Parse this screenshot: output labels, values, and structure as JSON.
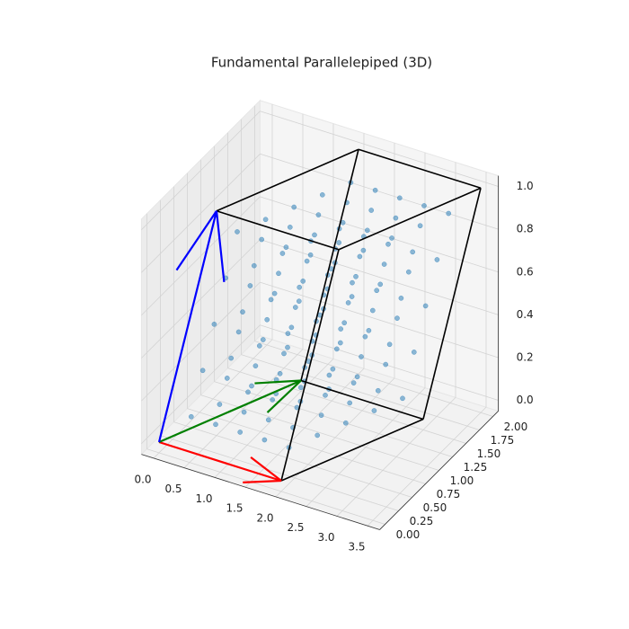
{
  "chart_data": {
    "type": "scatter3d",
    "title": "Fundamental Parallelepiped (3D)",
    "color": "#1f77b4",
    "edge_color": "black",
    "grid": true,
    "xlim": [
      -0.2,
      3.7
    ],
    "ylim": [
      -0.1,
      2.1
    ],
    "zlim": [
      -0.05,
      1.05
    ],
    "xticks": [
      {
        "value": 0,
        "label": "0.0"
      },
      {
        "value": 0.5,
        "label": "0.5"
      },
      {
        "value": 1,
        "label": "1.0"
      },
      {
        "value": 1.5,
        "label": "1.5"
      },
      {
        "value": 2,
        "label": "2.0"
      },
      {
        "value": 2.5,
        "label": "2.5"
      },
      {
        "value": 3,
        "label": "3.0"
      },
      {
        "value": 3.5,
        "label": "3.5"
      }
    ],
    "yticks": [
      {
        "value": 0,
        "label": "0.00"
      },
      {
        "value": 0.25,
        "label": "0.25"
      },
      {
        "value": 0.5,
        "label": "0.50"
      },
      {
        "value": 0.75,
        "label": "0.75"
      },
      {
        "value": 1,
        "label": "1.00"
      },
      {
        "value": 1.25,
        "label": "1.25"
      },
      {
        "value": 1.5,
        "label": "1.50"
      },
      {
        "value": 1.75,
        "label": "1.75"
      },
      {
        "value": 2,
        "label": "2.00"
      }
    ],
    "zticks": [
      {
        "value": 0,
        "label": "0.0"
      },
      {
        "value": 0.2,
        "label": "0.2"
      },
      {
        "value": 0.4,
        "label": "0.4"
      },
      {
        "value": 0.6,
        "label": "0.6"
      },
      {
        "value": 0.8,
        "label": "0.8"
      },
      {
        "value": 1,
        "label": "1.0"
      }
    ],
    "vectors": [
      {
        "color": "red",
        "values": [
          2,
          0,
          0
        ]
      },
      {
        "color": "green",
        "values": [
          1,
          1.5,
          0
        ]
      },
      {
        "color": "blue",
        "values": [
          0.5,
          0.5,
          1
        ]
      }
    ],
    "x": [
      0.35,
      0.75,
      1.15,
      1.55,
      1.95,
      0.55,
      0.95,
      1.35,
      1.75,
      2.15,
      0.75,
      1.15,
      1.55,
      1.95,
      2.35,
      0.95,
      1.35,
      1.75,
      2.15,
      2.55,
      1.15,
      1.55,
      1.95,
      2.35,
      2.75,
      0.45,
      0.85,
      1.25,
      1.65,
      2.05,
      0.65,
      1.05,
      1.45,
      1.85,
      2.25,
      0.85,
      1.25,
      1.65,
      2.05,
      2.45,
      1.05,
      1.45,
      1.85,
      2.25,
      2.65,
      1.25,
      1.65,
      2.05,
      2.45,
      2.85,
      0.55,
      0.95,
      1.35,
      1.75,
      2.15,
      0.75,
      1.15,
      1.55,
      1.95,
      2.35,
      0.95,
      1.35,
      1.75,
      2.15,
      2.55,
      1.15,
      1.55,
      1.95,
      2.35,
      2.75,
      1.35,
      1.75,
      2.15,
      2.55,
      2.95,
      0.65,
      1.05,
      1.45,
      1.85,
      2.25,
      0.85,
      1.25,
      1.65,
      2.05,
      2.45,
      1.05,
      1.45,
      1.85,
      2.25,
      2.65,
      1.25,
      1.65,
      2.05,
      2.45,
      2.85,
      1.45,
      1.85,
      2.25,
      2.65,
      3.05,
      0.75,
      1.15,
      1.55,
      1.95,
      2.35,
      0.95,
      1.35,
      1.75,
      2.15,
      2.55,
      1.15,
      1.55,
      1.95,
      2.35,
      2.75,
      1.35,
      1.75,
      2.15,
      2.55,
      2.95,
      1.55,
      1.95,
      2.35,
      2.75,
      3.15
    ],
    "y": [
      0.2,
      0.2,
      0.2,
      0.2,
      0.2,
      0.5,
      0.5,
      0.5,
      0.5,
      0.5,
      0.8,
      0.8,
      0.8,
      0.8,
      0.8,
      1.1,
      1.1,
      1.1,
      1.1,
      1.1,
      1.4,
      1.4,
      1.4,
      1.4,
      1.4,
      0.3,
      0.3,
      0.3,
      0.3,
      0.3,
      0.6,
      0.6,
      0.6,
      0.6,
      0.6,
      0.9,
      0.9,
      0.9,
      0.9,
      0.9,
      1.2,
      1.2,
      1.2,
      1.2,
      1.2,
      1.5,
      1.5,
      1.5,
      1.5,
      1.5,
      0.4,
      0.4,
      0.4,
      0.4,
      0.4,
      0.7,
      0.7,
      0.7,
      0.7,
      0.7,
      1.0,
      1.0,
      1.0,
      1.0,
      1.0,
      1.3,
      1.3,
      1.3,
      1.3,
      1.3,
      1.6,
      1.6,
      1.6,
      1.6,
      1.6,
      0.5,
      0.5,
      0.5,
      0.5,
      0.5,
      0.8,
      0.8,
      0.8,
      0.8,
      0.8,
      1.1,
      1.1,
      1.1,
      1.1,
      1.1,
      1.4,
      1.4,
      1.4,
      1.4,
      1.4,
      1.7,
      1.7,
      1.7,
      1.7,
      1.7,
      0.6,
      0.6,
      0.6,
      0.6,
      0.6,
      0.9,
      0.9,
      0.9,
      0.9,
      0.9,
      1.2,
      1.2,
      1.2,
      1.2,
      1.2,
      1.5,
      1.5,
      1.5,
      1.5,
      1.5,
      1.8,
      1.8,
      1.8,
      1.8,
      1.8
    ],
    "z": [
      0.1,
      0.1,
      0.1,
      0.1,
      0.1,
      0.1,
      0.1,
      0.1,
      0.1,
      0.1,
      0.1,
      0.1,
      0.1,
      0.1,
      0.1,
      0.1,
      0.1,
      0.1,
      0.1,
      0.1,
      0.1,
      0.1,
      0.1,
      0.1,
      0.1,
      0.3,
      0.3,
      0.3,
      0.3,
      0.3,
      0.3,
      0.3,
      0.3,
      0.3,
      0.3,
      0.3,
      0.3,
      0.3,
      0.3,
      0.3,
      0.3,
      0.3,
      0.3,
      0.3,
      0.3,
      0.3,
      0.3,
      0.3,
      0.3,
      0.3,
      0.5,
      0.5,
      0.5,
      0.5,
      0.5,
      0.5,
      0.5,
      0.5,
      0.5,
      0.5,
      0.5,
      0.5,
      0.5,
      0.5,
      0.5,
      0.5,
      0.5,
      0.5,
      0.5,
      0.5,
      0.5,
      0.5,
      0.5,
      0.5,
      0.5,
      0.7,
      0.7,
      0.7,
      0.7,
      0.7,
      0.7,
      0.7,
      0.7,
      0.7,
      0.7,
      0.7,
      0.7,
      0.7,
      0.7,
      0.7,
      0.7,
      0.7,
      0.7,
      0.7,
      0.7,
      0.7,
      0.7,
      0.7,
      0.7,
      0.7,
      0.9,
      0.9,
      0.9,
      0.9,
      0.9,
      0.9,
      0.9,
      0.9,
      0.9,
      0.9,
      0.9,
      0.9,
      0.9,
      0.9,
      0.9,
      0.9,
      0.9,
      0.9,
      0.9,
      0.9,
      0.9,
      0.9,
      0.9,
      0.9,
      0.9
    ]
  }
}
